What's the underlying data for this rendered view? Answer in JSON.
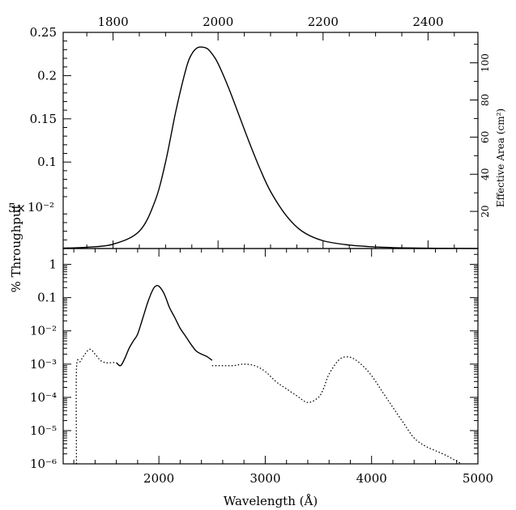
{
  "chart_data": [
    {
      "type": "line",
      "panel": "top",
      "xlabel": "",
      "top_xlabel": "",
      "ylabel": "% Throughput",
      "right_ylabel": "Effective Area (cm²)",
      "xlim": [
        1705,
        2495
      ],
      "ylim": [
        0,
        0.25
      ],
      "right_ylim": [
        0,
        116.4
      ],
      "xticks_top": [
        1800,
        2000,
        2200,
        2400
      ],
      "xticks_top_labels": [
        "1800",
        "2000",
        "2200",
        "2400"
      ],
      "yticks": [
        0.1,
        0.15,
        0.2,
        0.25
      ],
      "ytick_labels": [
        "0.1",
        "0.15",
        "0.2",
        "0.25"
      ],
      "right_yticks": [
        20,
        40,
        60,
        80,
        100
      ],
      "right_ytick_labels": [
        "20",
        "40",
        "60",
        "80",
        "100"
      ],
      "overlap_labels": [
        "5×",
        "10⁻²"
      ],
      "grid": false,
      "series": [
        {
          "style": "solid",
          "x": [
            1705,
            1750,
            1800,
            1850,
            1880,
            1900,
            1920,
            1940,
            1950,
            1960,
            1970,
            1980,
            1990,
            2000,
            2020,
            2040,
            2060,
            2080,
            2100,
            2130,
            2160,
            2200,
            2250,
            2300,
            2350,
            2400,
            2450,
            2495
          ],
          "y": [
            0.0005,
            0.0015,
            0.005,
            0.02,
            0.055,
            0.1,
            0.16,
            0.21,
            0.225,
            0.232,
            0.233,
            0.231,
            0.224,
            0.214,
            0.186,
            0.154,
            0.122,
            0.092,
            0.066,
            0.038,
            0.02,
            0.009,
            0.004,
            0.0018,
            0.0008,
            0.0004,
            0.0002,
            0.0001
          ]
        }
      ]
    },
    {
      "type": "line",
      "panel": "bottom",
      "xlabel": "Wavelength (Å)",
      "ylabel": "% Throughput",
      "xlim": [
        1100,
        5000
      ],
      "ylim": [
        1e-06,
        3
      ],
      "yscale": "log",
      "xticks": [
        2000,
        3000,
        4000,
        5000
      ],
      "xtick_labels": [
        "2000",
        "3000",
        "4000",
        "5000"
      ],
      "yticks": [
        1e-06,
        1e-05,
        0.0001,
        0.001,
        0.01,
        0.1,
        1
      ],
      "ytick_labels": [
        "10⁻⁶",
        "10⁻⁵",
        "10⁻⁴",
        "10⁻³",
        "10⁻²",
        "0.1",
        "1"
      ],
      "grid": false,
      "series": [
        {
          "style": "solid",
          "x": [
            1600,
            1640,
            1680,
            1720,
            1760,
            1800,
            1850,
            1900,
            1950,
            1980,
            2000,
            2030,
            2060,
            2100,
            2150,
            2200,
            2250,
            2300,
            2350,
            2400,
            2450,
            2500
          ],
          "y": [
            0.0011,
            0.0009,
            0.0015,
            0.003,
            0.005,
            0.008,
            0.025,
            0.08,
            0.19,
            0.23,
            0.22,
            0.17,
            0.11,
            0.05,
            0.025,
            0.012,
            0.007,
            0.004,
            0.0025,
            0.002,
            0.0017,
            0.0013
          ]
        },
        {
          "style": "dotted",
          "x": [
            1225,
            1225,
            1260,
            1300,
            1350,
            1400,
            1450,
            1500,
            1550,
            1600,
            1640,
            1680
          ],
          "y": [
            1e-06,
            0.0007,
            0.0012,
            0.0019,
            0.0028,
            0.002,
            0.0013,
            0.0011,
            0.0011,
            0.0011,
            0.0009,
            0.0015
          ]
        },
        {
          "style": "dotted",
          "x": [
            2500,
            2600,
            2700,
            2800,
            2900,
            3000,
            3100,
            3200,
            3300,
            3400,
            3500,
            3550,
            3600,
            3700,
            3800,
            3900,
            4000,
            4100,
            4200,
            4300,
            4400,
            4500,
            4600,
            4700,
            4800,
            4850
          ],
          "y": [
            0.0009,
            0.0009,
            0.0009,
            0.001,
            0.0009,
            0.0006,
            0.0003,
            0.00018,
            0.00011,
            7e-05,
            0.0001,
            0.00019,
            0.0005,
            0.0014,
            0.0016,
            0.001,
            0.00045,
            0.00015,
            5e-05,
            1.7e-05,
            6e-06,
            3.5e-06,
            2.5e-06,
            1.8e-06,
            1.2e-06,
            1e-06
          ]
        }
      ]
    }
  ]
}
